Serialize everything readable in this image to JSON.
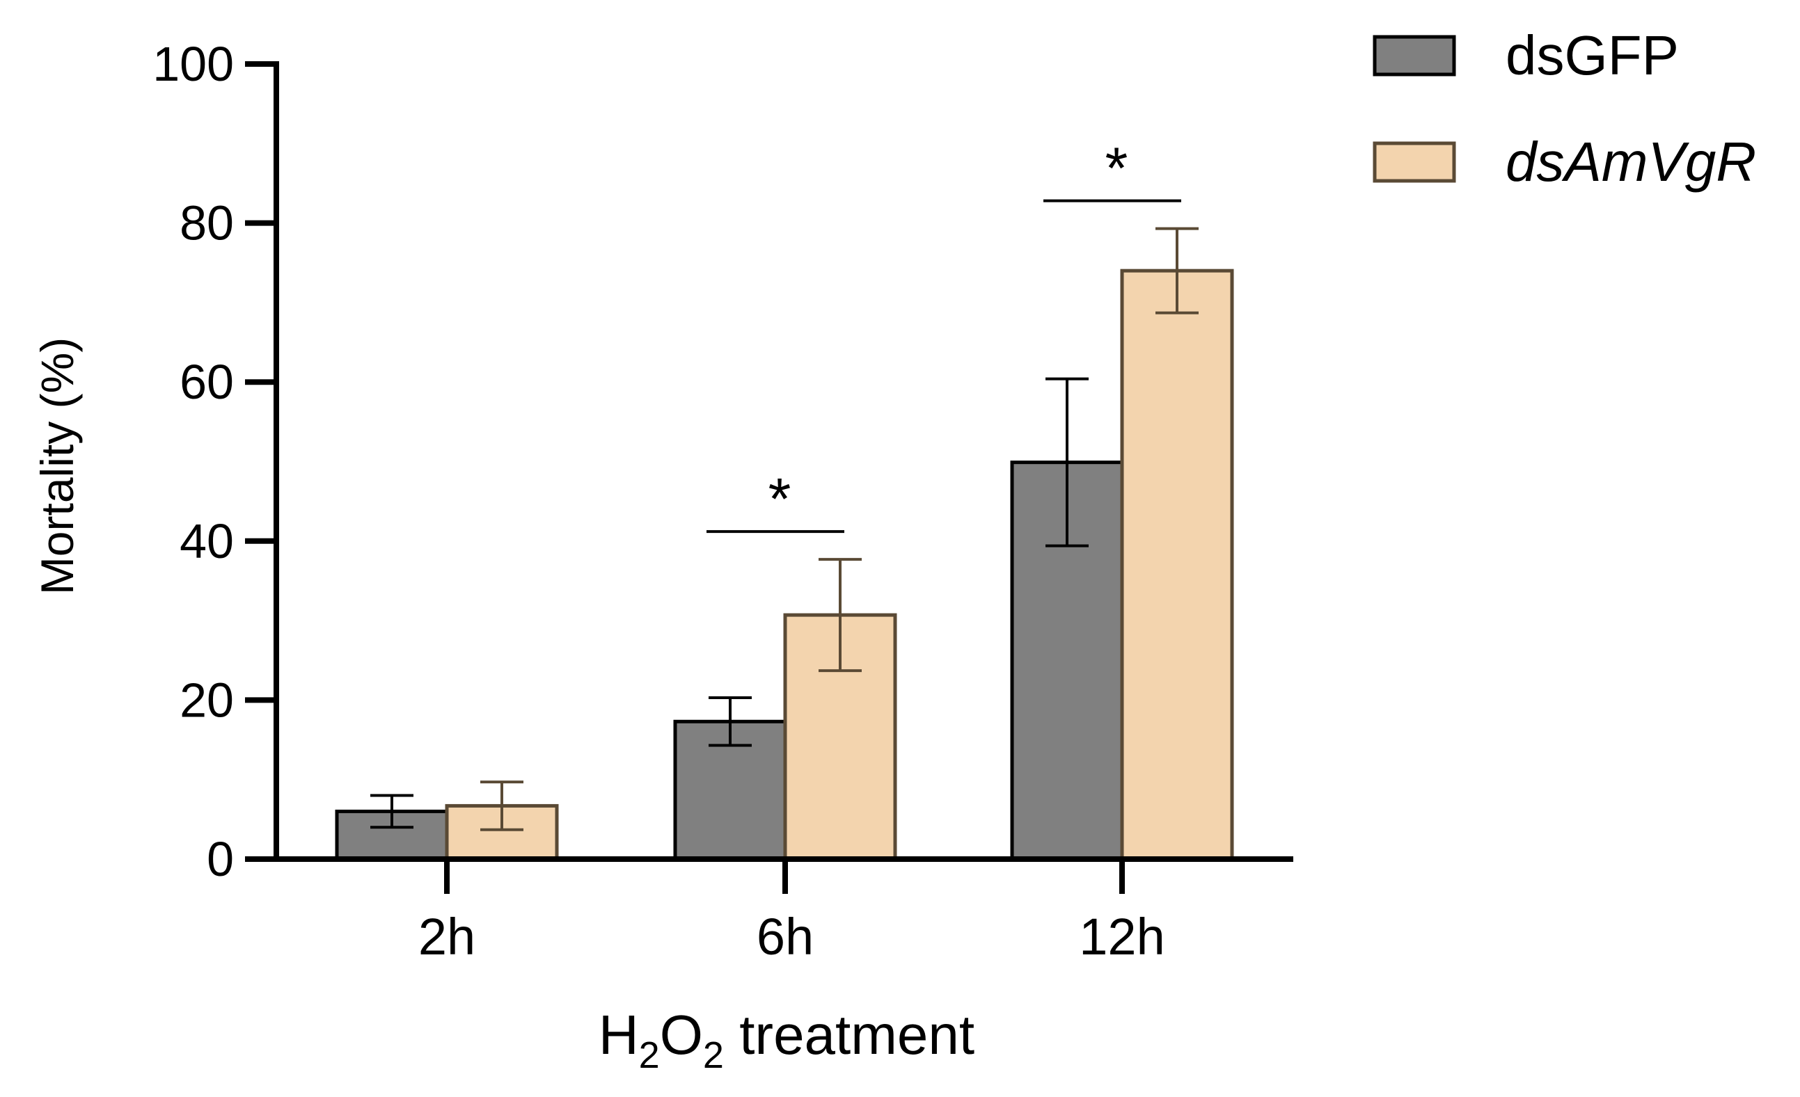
{
  "chart_data": {
    "type": "bar",
    "title": "",
    "xlabel": "H2O2 treatment",
    "xlabel_parts": {
      "main": "H",
      "sub1": "2",
      "mid": "O",
      "sub2": "2",
      "rest": " treatment"
    },
    "ylabel": "Mortality (%)",
    "ylim": [
      0,
      100
    ],
    "yticks": [
      "0",
      "20",
      "40",
      "60",
      "80",
      "100"
    ],
    "categories": [
      "2h",
      "6h",
      "12h"
    ],
    "series": [
      {
        "name": "dsGFP",
        "italic": false,
        "color": "#808080",
        "edge": "#000000",
        "values": [
          6,
          17.3,
          49.9
        ],
        "errors": [
          2,
          3,
          10.5
        ]
      },
      {
        "name": "dsAmVgR",
        "italic": true,
        "color": "#f3d4ae",
        "edge": "#5a4a35",
        "values": [
          6.7,
          30.7,
          74
        ],
        "errors": [
          3,
          7,
          5.3
        ]
      }
    ],
    "significance": [
      {
        "category": "6h",
        "label": "*"
      },
      {
        "category": "12h",
        "label": "*"
      }
    ],
    "legend": "top-right",
    "grid": false
  }
}
